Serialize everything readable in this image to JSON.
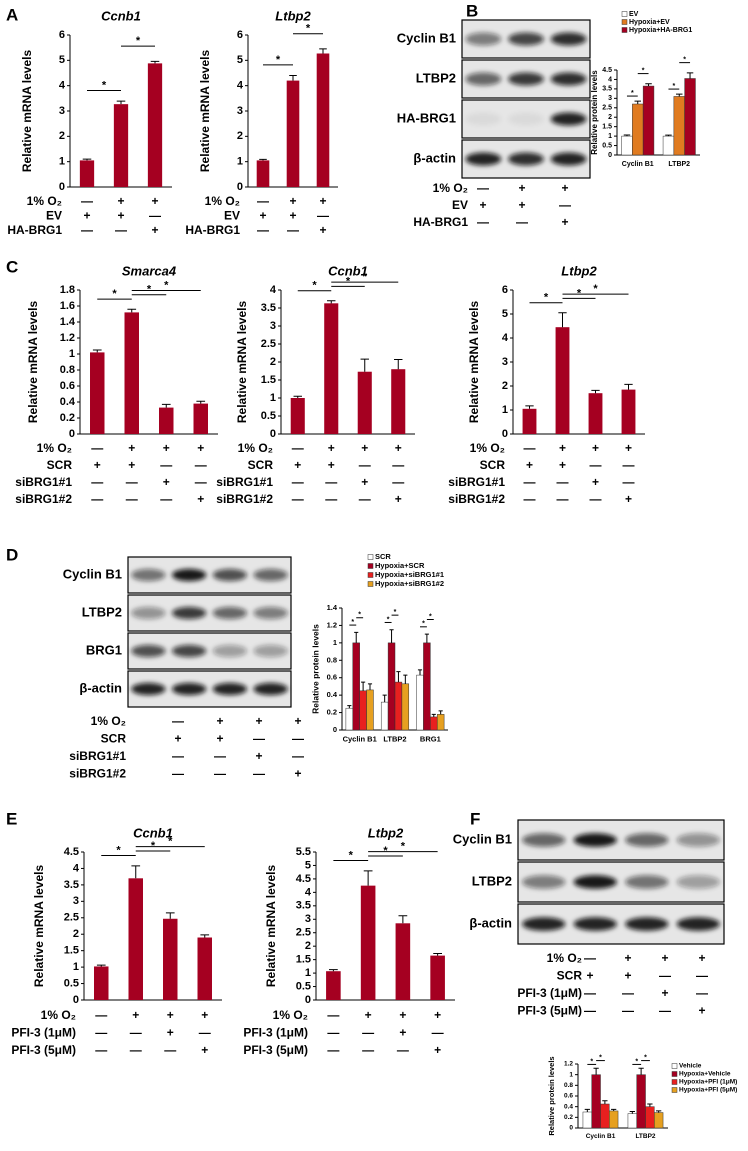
{
  "panels": [
    "A",
    "B",
    "C",
    "D",
    "E",
    "F"
  ],
  "chart_data": [
    {
      "type": "bar",
      "title": "Ccnb1",
      "ylabel": "Relative mRNA levels",
      "categories": [
        null,
        null,
        null
      ],
      "values": [
        1.05,
        3.27,
        4.88
      ],
      "errors": [
        0.05,
        0.12,
        0.08
      ],
      "color": "#a50021",
      "ylim": [
        0,
        6
      ],
      "yticks": [
        0,
        1,
        2,
        3,
        4,
        5,
        6
      ],
      "significance": [
        {
          "label": "*",
          "between": [
            0,
            1
          ]
        },
        {
          "label": "*",
          "between": [
            1,
            2
          ]
        }
      ],
      "conditions": [
        {
          "label": "1% O₂",
          "marks": [
            "—",
            "+",
            "+"
          ]
        },
        {
          "label": "EV",
          "marks": [
            "+",
            "+",
            "—"
          ]
        },
        {
          "label": "HA-BRG1",
          "marks": [
            "—",
            "—",
            "+"
          ]
        }
      ]
    },
    {
      "type": "bar",
      "title": "Ltbp2",
      "ylabel": "Relative mRNA levels",
      "categories": [
        null,
        null,
        null
      ],
      "values": [
        1.05,
        4.2,
        5.27
      ],
      "errors": [
        0.04,
        0.2,
        0.18
      ],
      "color": "#a50021",
      "ylim": [
        0,
        6
      ],
      "yticks": [
        0,
        1,
        2,
        3,
        4,
        5,
        6
      ],
      "significance": [
        {
          "label": "*",
          "between": [
            0,
            1
          ]
        },
        {
          "label": "*",
          "between": [
            1,
            2
          ]
        }
      ],
      "conditions": [
        {
          "label": "1% O₂",
          "marks": [
            "—",
            "+",
            "+"
          ]
        },
        {
          "label": "EV",
          "marks": [
            "+",
            "+",
            "—"
          ]
        },
        {
          "label": "HA-BRG1",
          "marks": [
            "—",
            "—",
            "+"
          ]
        }
      ]
    },
    {
      "type": "bar",
      "ylabel": "Relative protein levels",
      "categories": [
        "Cyclin B1",
        "LTBP2"
      ],
      "series": [
        {
          "name": "EV",
          "color": "#ffffff",
          "values": [
            1.0,
            1.0
          ],
          "errors": [
            0.06,
            0.05
          ]
        },
        {
          "name": "Hypoxia+EV",
          "color": "#e07b20",
          "values": [
            2.7,
            3.1
          ],
          "errors": [
            0.15,
            0.12
          ]
        },
        {
          "name": "Hypoxia+HA-BRG1",
          "color": "#a50021",
          "values": [
            3.65,
            4.05
          ],
          "errors": [
            0.12,
            0.3
          ]
        }
      ],
      "ylim": [
        0,
        4.5
      ],
      "yticks": [
        0,
        0.5,
        1,
        1.5,
        2,
        2.5,
        3,
        3.5,
        4,
        4.5
      ],
      "significance": [
        {
          "label": "*",
          "category": 0,
          "between": [
            0,
            1
          ]
        },
        {
          "label": "*",
          "category": 0,
          "between": [
            1,
            2
          ]
        },
        {
          "label": "*",
          "category": 1,
          "between": [
            0,
            1
          ]
        },
        {
          "label": "*",
          "category": 1,
          "between": [
            1,
            2
          ]
        }
      ]
    },
    {
      "type": "bar",
      "title": "Smarca4",
      "ylabel": "Relative mRNA levels",
      "categories": [
        null,
        null,
        null,
        null
      ],
      "values": [
        1.02,
        1.52,
        0.33,
        0.38
      ],
      "errors": [
        0.03,
        0.04,
        0.04,
        0.03
      ],
      "color": "#a50021",
      "ylim": [
        0,
        1.8
      ],
      "yticks": [
        0,
        0.2,
        0.4,
        0.6,
        0.8,
        1,
        1.2,
        1.4,
        1.6,
        1.8
      ],
      "significance": [
        {
          "label": "*",
          "between": [
            0,
            1
          ]
        },
        {
          "label": "*",
          "between": [
            1,
            2
          ]
        },
        {
          "label": "*",
          "between": [
            1,
            3
          ]
        }
      ],
      "conditions": [
        {
          "label": "1% O₂",
          "marks": [
            "—",
            "+",
            "+",
            "+"
          ]
        },
        {
          "label": "SCR",
          "marks": [
            "+",
            "+",
            "—",
            "—"
          ]
        },
        {
          "label": "siBRG1#1",
          "marks": [
            "—",
            "—",
            "+",
            "—"
          ]
        },
        {
          "label": "siBRG1#2",
          "marks": [
            "—",
            "—",
            "—",
            "+"
          ]
        }
      ]
    },
    {
      "type": "bar",
      "title": "Ccnb1",
      "ylabel": "Relative mRNA levels",
      "categories": [
        null,
        null,
        null,
        null
      ],
      "values": [
        1.0,
        3.63,
        1.73,
        1.8
      ],
      "errors": [
        0.05,
        0.07,
        0.35,
        0.27
      ],
      "color": "#a50021",
      "ylim": [
        0,
        4
      ],
      "yticks": [
        0,
        0.5,
        1,
        1.5,
        2,
        2.5,
        3,
        3.5,
        4
      ],
      "significance": [
        {
          "label": "*",
          "between": [
            0,
            1
          ]
        },
        {
          "label": "*",
          "between": [
            1,
            2
          ]
        },
        {
          "label": "*",
          "between": [
            1,
            3
          ]
        }
      ],
      "conditions": [
        {
          "label": "1% O₂",
          "marks": [
            "—",
            "+",
            "+",
            "+"
          ]
        },
        {
          "label": "SCR",
          "marks": [
            "+",
            "+",
            "—",
            "—"
          ]
        },
        {
          "label": "siBRG1#1",
          "marks": [
            "—",
            "—",
            "+",
            "—"
          ]
        },
        {
          "label": "siBRG1#2",
          "marks": [
            "—",
            "—",
            "—",
            "+"
          ]
        }
      ]
    },
    {
      "type": "bar",
      "title": "Ltbp2",
      "ylabel": "Relative mRNA levels",
      "categories": [
        null,
        null,
        null,
        null
      ],
      "values": [
        1.05,
        4.45,
        1.7,
        1.85
      ],
      "errors": [
        0.12,
        0.6,
        0.12,
        0.22
      ],
      "color": "#a50021",
      "ylim": [
        0,
        6
      ],
      "yticks": [
        0,
        1,
        2,
        3,
        4,
        5,
        6
      ],
      "significance": [
        {
          "label": "*",
          "between": [
            0,
            1
          ]
        },
        {
          "label": "*",
          "between": [
            1,
            2
          ]
        },
        {
          "label": "*",
          "between": [
            1,
            3
          ]
        }
      ],
      "conditions": [
        {
          "label": "1% O₂",
          "marks": [
            "—",
            "+",
            "+",
            "+"
          ]
        },
        {
          "label": "SCR",
          "marks": [
            "+",
            "+",
            "—",
            "—"
          ]
        },
        {
          "label": "siBRG1#1",
          "marks": [
            "—",
            "—",
            "+",
            "—"
          ]
        },
        {
          "label": "siBRG1#2",
          "marks": [
            "—",
            "—",
            "—",
            "+"
          ]
        }
      ]
    },
    {
      "type": "bar",
      "ylabel": "Relative protein levels",
      "categories": [
        "Cyclin B1",
        "LTBP2",
        "BRG1"
      ],
      "series": [
        {
          "name": "SCR",
          "color": "#ffffff",
          "values": [
            0.25,
            0.32,
            0.63
          ],
          "errors": [
            0.03,
            0.08,
            0.06
          ]
        },
        {
          "name": "Hypoxia+SCR",
          "color": "#a50021",
          "values": [
            1.0,
            1.0,
            1.0
          ],
          "errors": [
            0.12,
            0.15,
            0.1
          ]
        },
        {
          "name": "Hypoxia+siBRG1#1",
          "color": "#e8201f",
          "values": [
            0.45,
            0.55,
            0.15
          ],
          "errors": [
            0.1,
            0.12,
            0.03
          ]
        },
        {
          "name": "Hypoxia+siBRG1#2",
          "color": "#e6a020",
          "values": [
            0.46,
            0.53,
            0.18
          ],
          "errors": [
            0.07,
            0.1,
            0.04
          ]
        }
      ],
      "ylim": [
        0,
        1.4
      ],
      "yticks": [
        0,
        0.2,
        0.4,
        0.6,
        0.8,
        1,
        1.2,
        1.4
      ],
      "significance": [
        {
          "label": "*",
          "category": 0,
          "between": [
            0,
            1
          ]
        },
        {
          "label": "*",
          "category": 0,
          "between": [
            1,
            2
          ]
        },
        {
          "label": "*",
          "category": 1,
          "between": [
            0,
            1
          ]
        },
        {
          "label": "*",
          "category": 1,
          "between": [
            1,
            2
          ]
        },
        {
          "label": "*",
          "category": 2,
          "between": [
            0,
            1
          ]
        },
        {
          "label": "*",
          "category": 2,
          "between": [
            1,
            2
          ]
        }
      ]
    },
    {
      "type": "bar",
      "title": "Ccnb1",
      "ylabel": "Relative mRNA levels",
      "categories": [
        null,
        null,
        null,
        null
      ],
      "values": [
        1.02,
        3.7,
        2.47,
        1.9
      ],
      "errors": [
        0.04,
        0.38,
        0.18,
        0.08
      ],
      "color": "#a50021",
      "ylim": [
        0,
        4.5
      ],
      "yticks": [
        0,
        0.5,
        1,
        1.5,
        2,
        2.5,
        3,
        3.5,
        4,
        4.5
      ],
      "significance": [
        {
          "label": "*",
          "between": [
            0,
            1
          ]
        },
        {
          "label": "*",
          "between": [
            1,
            2
          ]
        },
        {
          "label": "*",
          "between": [
            1,
            3
          ]
        }
      ],
      "conditions": [
        {
          "label": "1% O₂",
          "marks": [
            "—",
            "+",
            "+",
            "+"
          ]
        },
        {
          "label": "PFI-3 (1μM)",
          "marks": [
            "—",
            "—",
            "+",
            "—"
          ]
        },
        {
          "label": "PFI-3 (5μM)",
          "marks": [
            "—",
            "—",
            "—",
            "+"
          ]
        }
      ]
    },
    {
      "type": "bar",
      "title": "Ltbp2",
      "ylabel": "Relative mRNA levels",
      "categories": [
        null,
        null,
        null,
        null
      ],
      "values": [
        1.07,
        4.25,
        2.85,
        1.65
      ],
      "errors": [
        0.06,
        0.55,
        0.28,
        0.08
      ],
      "color": "#a50021",
      "ylim": [
        0,
        5.5
      ],
      "yticks": [
        0,
        0.5,
        1,
        1.5,
        2,
        2.5,
        3,
        3.5,
        4,
        4.5,
        5,
        5.5
      ],
      "significance": [
        {
          "label": "*",
          "between": [
            0,
            1
          ]
        },
        {
          "label": "*",
          "between": [
            1,
            2
          ]
        },
        {
          "label": "*",
          "between": [
            1,
            3
          ]
        }
      ],
      "conditions": [
        {
          "label": "1% O₂",
          "marks": [
            "—",
            "+",
            "+",
            "+"
          ]
        },
        {
          "label": "PFI-3 (1μM)",
          "marks": [
            "—",
            "—",
            "+",
            "—"
          ]
        },
        {
          "label": "PFI-3 (5μM)",
          "marks": [
            "—",
            "—",
            "—",
            "+"
          ]
        }
      ]
    },
    {
      "type": "bar",
      "ylabel": "Relative protein levels",
      "categories": [
        "Cyclin B1",
        "LTBP2"
      ],
      "series": [
        {
          "name": "Vehicle",
          "color": "#ffffff",
          "values": [
            0.3,
            0.27
          ],
          "errors": [
            0.05,
            0.04
          ]
        },
        {
          "name": "Hypoxia+Vehicle",
          "color": "#a50021",
          "values": [
            1.0,
            1.0
          ],
          "errors": [
            0.12,
            0.12
          ]
        },
        {
          "name": "Hypoxia+PFI (1μM)",
          "color": "#e8201f",
          "values": [
            0.45,
            0.4
          ],
          "errors": [
            0.06,
            0.05
          ]
        },
        {
          "name": "Hypoxia+PFI (5μM)",
          "color": "#e6a020",
          "values": [
            0.32,
            0.29
          ],
          "errors": [
            0.03,
            0.03
          ]
        }
      ],
      "ylim": [
        0,
        1.2
      ],
      "yticks": [
        0,
        0.2,
        0.4,
        0.6,
        0.8,
        1,
        1.2
      ],
      "significance": [
        {
          "label": "*",
          "category": 0,
          "between": [
            0,
            1
          ]
        },
        {
          "label": "*",
          "category": 0,
          "between": [
            1,
            2
          ]
        },
        {
          "label": "*",
          "category": 1,
          "between": [
            0,
            1
          ]
        },
        {
          "label": "*",
          "category": 1,
          "between": [
            1,
            2
          ]
        }
      ]
    }
  ],
  "blots": [
    {
      "bands": [
        "Cyclin B1",
        "LTBP2",
        "HA-BRG1",
        "β-actin"
      ],
      "conditions": [
        {
          "label": "1% O₂",
          "marks": [
            "—",
            "+",
            "+"
          ]
        },
        {
          "label": "EV",
          "marks": [
            "+",
            "+",
            "—"
          ]
        },
        {
          "label": "HA-BRG1",
          "marks": [
            "—",
            "—",
            "+"
          ]
        }
      ]
    },
    {
      "bands": [
        "Cyclin B1",
        "LTBP2",
        "BRG1",
        "β-actin"
      ],
      "conditions": [
        {
          "label": "1% O₂",
          "marks": [
            "—",
            "+",
            "+",
            "+"
          ]
        },
        {
          "label": "SCR",
          "marks": [
            "+",
            "+",
            "—",
            "—"
          ]
        },
        {
          "label": "siBRG1#1",
          "marks": [
            "—",
            "—",
            "+",
            "—"
          ]
        },
        {
          "label": "siBRG1#2",
          "marks": [
            "—",
            "—",
            "—",
            "+"
          ]
        }
      ]
    },
    {
      "bands": [
        "Cyclin B1",
        "LTBP2",
        "β-actin"
      ],
      "conditions": [
        {
          "label": "1% O₂",
          "marks": [
            "—",
            "+",
            "+",
            "+"
          ]
        },
        {
          "label": "SCR",
          "marks": [
            "+",
            "+",
            "—",
            "—"
          ]
        },
        {
          "label": "PFI-3 (1μM)",
          "marks": [
            "—",
            "—",
            "+",
            "—"
          ]
        },
        {
          "label": "PFI-3 (5μM)",
          "marks": [
            "—",
            "—",
            "—",
            "+"
          ]
        }
      ]
    }
  ]
}
